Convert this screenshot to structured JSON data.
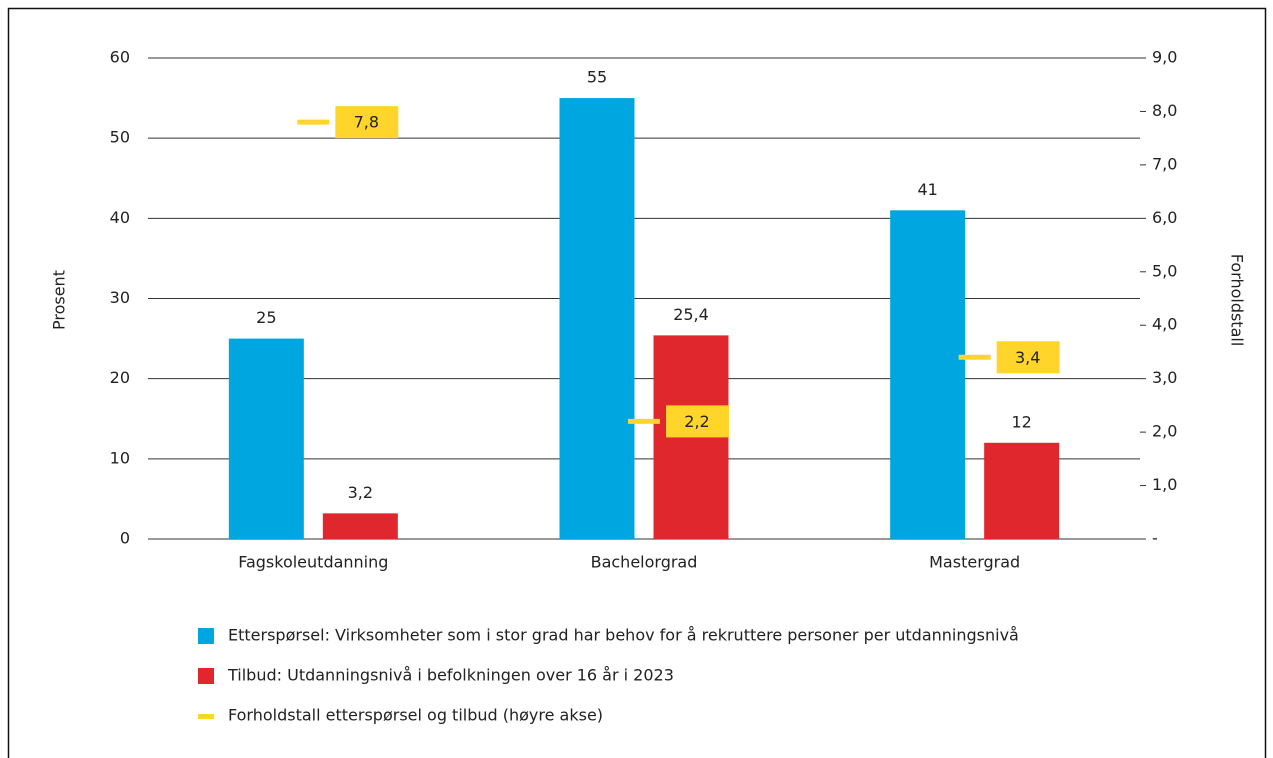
{
  "chart_data": {
    "type": "bar",
    "categories": [
      "Fagskoleutdanning",
      "Bachelorgrad",
      "Mastergrad"
    ],
    "series": [
      {
        "name": "Etterspørsel: Virksomheter som i stor grad har behov for å rekruttere personer per utdanningsnivå",
        "color": "#00a6e0",
        "values": [
          25,
          55,
          41
        ]
      },
      {
        "name": "Tilbud: Utdanningsnivå i befolkningen over 16 år i 2023",
        "color": "#e0272e",
        "values": [
          3.2,
          25.4,
          12
        ],
        "value_labels": [
          "3,2",
          "25,4",
          "12"
        ]
      },
      {
        "name": "Forholdstall etterspørsel og tilbud (høyre akse)",
        "color": "#ffd52b",
        "axis": "y2",
        "values": [
          7.8,
          2.2,
          3.4
        ],
        "value_labels": [
          "7,8",
          "2,2",
          "3,4"
        ]
      }
    ],
    "ylabel": "Prosent",
    "y2label": "Forholdstall",
    "ylim": [
      0,
      60
    ],
    "yticks": [
      0,
      10,
      20,
      30,
      40,
      50,
      60
    ],
    "y2lim": [
      0,
      9
    ],
    "y2ticks": [
      {
        "value": 0,
        "label": "-"
      },
      {
        "value": 1,
        "label": "1,0"
      },
      {
        "value": 2,
        "label": "2,0"
      },
      {
        "value": 3,
        "label": "3,0"
      },
      {
        "value": 4,
        "label": "4,0"
      },
      {
        "value": 5,
        "label": "5,0"
      },
      {
        "value": 6,
        "label": "6,0"
      },
      {
        "value": 7,
        "label": "7,0"
      },
      {
        "value": 8,
        "label": "8,0"
      },
      {
        "value": 9,
        "label": "9,0"
      }
    ],
    "grid": true
  }
}
